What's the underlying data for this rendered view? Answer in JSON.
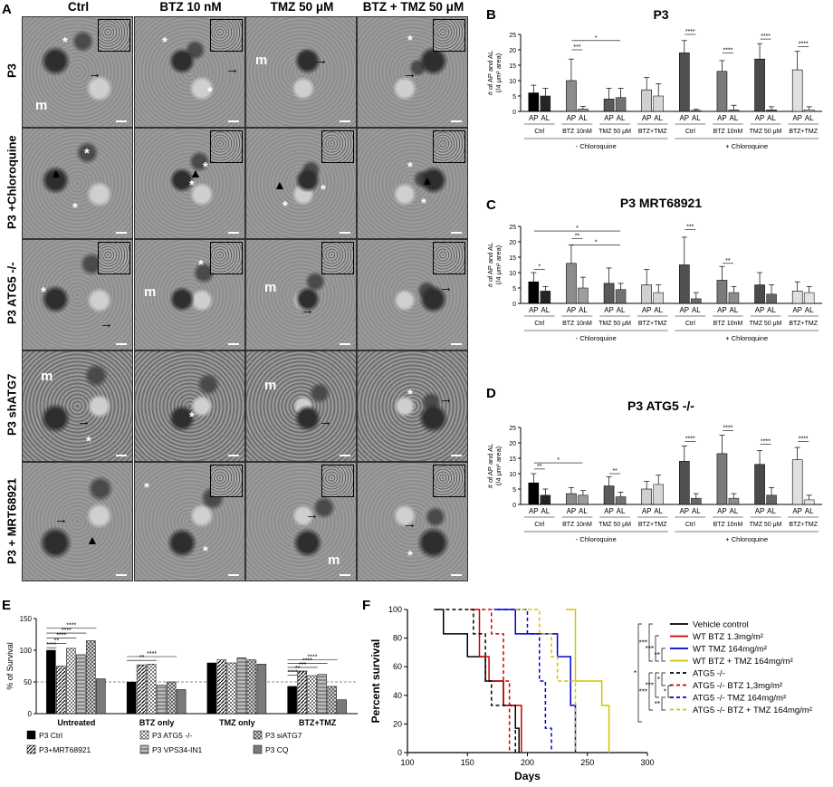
{
  "panel_letters": {
    "a": "A",
    "b": "B",
    "c": "C",
    "d": "D",
    "e": "E",
    "f": "F"
  },
  "panel_a": {
    "columns": [
      "Ctrl",
      "BTZ 10 nM",
      "TMZ 50 μM",
      "BTZ + TMZ 50 μM"
    ],
    "rows": [
      "P3",
      "P3 +Chloroquine",
      "P3 ATG5 -/-",
      "P3 shATG7",
      "P3 + MRT68921"
    ],
    "marker_labels": {
      "asterisk": "*",
      "mito": "m",
      "arrow": "→",
      "arrowhead": "▲"
    },
    "colors": {
      "background": "#8a8a8a",
      "dark": "#3a3a3a",
      "light": "#c8c8c8"
    }
  },
  "panel_bcd": {
    "ylabel_line1": "# of AP and AL",
    "ylabel_line2": "(/4 μm² area)",
    "bar_labels": [
      "AP",
      "AL"
    ],
    "group_labels": [
      "Ctrl",
      "BTZ 10nM",
      "TMZ 50 μM",
      "BTZ+TMZ"
    ],
    "section_labels": [
      "- Chloroquine",
      "+ Chloroquine"
    ],
    "colors": {
      "ctrl": "#000000",
      "btz": "#8c8c8c",
      "tmz": "#5a5a5a",
      "combo": "#d0d0d0",
      "plusctrl": "#505050",
      "plusbtz": "#7a7a7a",
      "plustmz": "#4a4a4a",
      "pluscombo": "#e0e0e0"
    }
  },
  "chart_data": [
    {
      "id": "B",
      "type": "bar",
      "title": "P3",
      "ylabel": "# of AP and AL (/4 μm² area)",
      "ylim": [
        0,
        25
      ],
      "yticks": [
        0,
        5,
        10,
        15,
        20,
        25
      ],
      "categories": [
        "Ctrl - Chloroquine",
        "BTZ 10nM - Chloroquine",
        "TMZ 50 μM - Chloroquine",
        "BTZ+TMZ - Chloroquine",
        "Ctrl + Chloroquine",
        "BTZ 10nM + Chloroquine",
        "TMZ 50 μM + Chloroquine",
        "BTZ+TMZ + Chloroquine"
      ],
      "series": [
        {
          "name": "AP",
          "values": [
            6,
            10,
            4,
            7,
            19,
            13,
            17,
            13.5
          ],
          "err": [
            2.5,
            7,
            3.5,
            4,
            4,
            3.5,
            5,
            6
          ]
        },
        {
          "name": "AL",
          "values": [
            5,
            0.8,
            4.5,
            5,
            0.3,
            0.5,
            0.5,
            0.5
          ],
          "err": [
            2.5,
            0.8,
            3,
            4,
            0.4,
            1.5,
            1,
            1
          ]
        }
      ],
      "significance": [
        "***",
        "*",
        "****",
        "****",
        "****",
        "****"
      ]
    },
    {
      "id": "C",
      "type": "bar",
      "title": "P3 MRT68921",
      "ylabel": "# of AP and AL (/4 μm² area)",
      "ylim": [
        0,
        25
      ],
      "yticks": [
        0,
        5,
        10,
        15,
        20,
        25
      ],
      "categories": [
        "Ctrl - Chloroquine",
        "BTZ 10nM - Chloroquine",
        "TMZ 50 μM - Chloroquine",
        "BTZ+TMZ - Chloroquine",
        "Ctrl + Chloroquine",
        "BTZ 10nM + Chloroquine",
        "TMZ 50 μM + Chloroquine",
        "BTZ+TMZ + Chloroquine"
      ],
      "series": [
        {
          "name": "AP",
          "values": [
            7,
            13,
            6.5,
            6,
            12.5,
            7.5,
            6,
            4
          ],
          "err": [
            3,
            6,
            5,
            5,
            9,
            4.5,
            4,
            3
          ]
        },
        {
          "name": "AL",
          "values": [
            4,
            5,
            4.5,
            3.5,
            1.5,
            3.5,
            3,
            3.5
          ],
          "err": [
            1.5,
            3.5,
            2,
            2.5,
            2,
            2,
            3,
            2
          ]
        }
      ],
      "significance": [
        "*",
        "*",
        "**",
        "*",
        "***",
        "**"
      ]
    },
    {
      "id": "D",
      "type": "bar",
      "title": "P3 ATG5 -/-",
      "ylabel": "# of AP and AL (/4 μm² area)",
      "ylim": [
        0,
        25
      ],
      "yticks": [
        0,
        5,
        10,
        15,
        20,
        25
      ],
      "categories": [
        "Ctrl - Chloroquine",
        "BTZ 10nM - Chloroquine",
        "TMZ 50 μM - Chloroquine",
        "BTZ+TMZ - Chloroquine",
        "Ctrl + Chloroquine",
        "BTZ 10nM + Chloroquine",
        "TMZ 50 μM + Chloroquine",
        "BTZ+TMZ + Chloroquine"
      ],
      "series": [
        {
          "name": "AP",
          "values": [
            7,
            3.5,
            6,
            5,
            14,
            16.5,
            13,
            14.5
          ],
          "err": [
            3,
            2,
            3,
            2.5,
            5,
            6,
            4.5,
            4
          ]
        },
        {
          "name": "AL",
          "values": [
            3,
            3,
            2.5,
            6.5,
            2,
            2,
            3,
            1.5
          ],
          "err": [
            2,
            1.5,
            1.5,
            3,
            1.5,
            1.5,
            2.5,
            1.5
          ]
        }
      ],
      "significance": [
        "**",
        "*",
        "**",
        "****",
        "****",
        "****",
        "****"
      ]
    },
    {
      "id": "E",
      "type": "bar",
      "title": "",
      "ylabel": "% of Survival",
      "ylim": [
        0,
        150
      ],
      "yticks": [
        0,
        50,
        100,
        150
      ],
      "categories": [
        "Untreated",
        "BTZ only",
        "TMZ only",
        "BTZ+TMZ"
      ],
      "series": [
        {
          "name": "P3 Ctrl",
          "values": [
            100,
            50,
            80,
            43
          ]
        },
        {
          "name": "P3+MRT68921",
          "values": [
            75,
            77,
            85,
            67
          ]
        },
        {
          "name": "P3 ATG5 -/-",
          "values": [
            103,
            78,
            80,
            60
          ]
        },
        {
          "name": "P3 VPS34-IN1",
          "values": [
            93,
            45,
            88,
            62
          ]
        },
        {
          "name": "P3 siATG7",
          "values": [
            115,
            50,
            85,
            43
          ]
        },
        {
          "name": "P3 CQ",
          "values": [
            55,
            38,
            78,
            22
          ]
        }
      ],
      "dashed_reference": 50,
      "significance": [
        "****",
        "****",
        "****",
        "**",
        "****",
        "****",
        "**",
        "****",
        "****",
        "***",
        "**",
        "****"
      ]
    },
    {
      "id": "F",
      "type": "line",
      "title": "",
      "xlabel": "Days",
      "ylabel": "Percent survival",
      "xlim": [
        100,
        300
      ],
      "ylim": [
        0,
        100
      ],
      "xticks": [
        100,
        150,
        200,
        250,
        300
      ],
      "yticks": [
        0,
        20,
        40,
        60,
        80,
        100
      ],
      "series": [
        {
          "name": "Vehicle control",
          "color": "#000000",
          "dash": false,
          "x": [
            122,
            130,
            150,
            165,
            180,
            190,
            193
          ],
          "y": [
            100,
            83,
            67,
            50,
            33,
            17,
            0
          ]
        },
        {
          "name": "WT BTZ 1.3mg/m²",
          "color": "#cc0000",
          "dash": false,
          "x": [
            152,
            160,
            168,
            180,
            195
          ],
          "y": [
            100,
            67,
            50,
            33,
            0
          ]
        },
        {
          "name": "WT TMZ 164mg/m²",
          "color": "#0000cc",
          "dash": false,
          "x": [
            172,
            190,
            225,
            236,
            240
          ],
          "y": [
            100,
            83,
            67,
            33,
            0
          ]
        },
        {
          "name": "WT BTZ + TMZ 164mg/m²",
          "color": "#d4c200",
          "dash": false,
          "x": [
            232,
            240,
            262,
            268
          ],
          "y": [
            100,
            50,
            33,
            0
          ]
        },
        {
          "name": "ATG5 -/-",
          "color": "#000000",
          "dash": true,
          "x": [
            132,
            155,
            165,
            170,
            190
          ],
          "y": [
            100,
            83,
            50,
            33,
            0
          ]
        },
        {
          "name": "ATG5 -/- BTZ 1,3mg/m²",
          "color": "#cc0000",
          "dash": true,
          "x": [
            162,
            170,
            180,
            185
          ],
          "y": [
            100,
            83,
            50,
            0
          ]
        },
        {
          "name": "ATG5 -/- TMZ 164mg/m²",
          "color": "#0000cc",
          "dash": true,
          "x": [
            175,
            200,
            210,
            215,
            220
          ],
          "y": [
            100,
            83,
            50,
            17,
            0
          ]
        },
        {
          "name": "ATG5 -/- BTZ + TMZ 164mg/m²",
          "color": "#d4c200",
          "dash": true,
          "x": [
            190,
            210,
            220,
            225,
            240
          ],
          "y": [
            100,
            83,
            67,
            50,
            0
          ]
        }
      ],
      "significance": [
        "***",
        "***",
        "**",
        "*",
        "*",
        "***",
        "***",
        "**",
        "*"
      ]
    }
  ],
  "legend_e": [
    "P3 Ctrl",
    "P3+MRT68921",
    "P3 ATG5 -/-",
    "P3 VPS34-IN1",
    "P3 siATG7",
    "P3 CQ"
  ],
  "axis_e": {
    "ylabel": "% of Survival"
  },
  "axis_f": {
    "xlabel": "Days",
    "ylabel": "Percent survival"
  }
}
